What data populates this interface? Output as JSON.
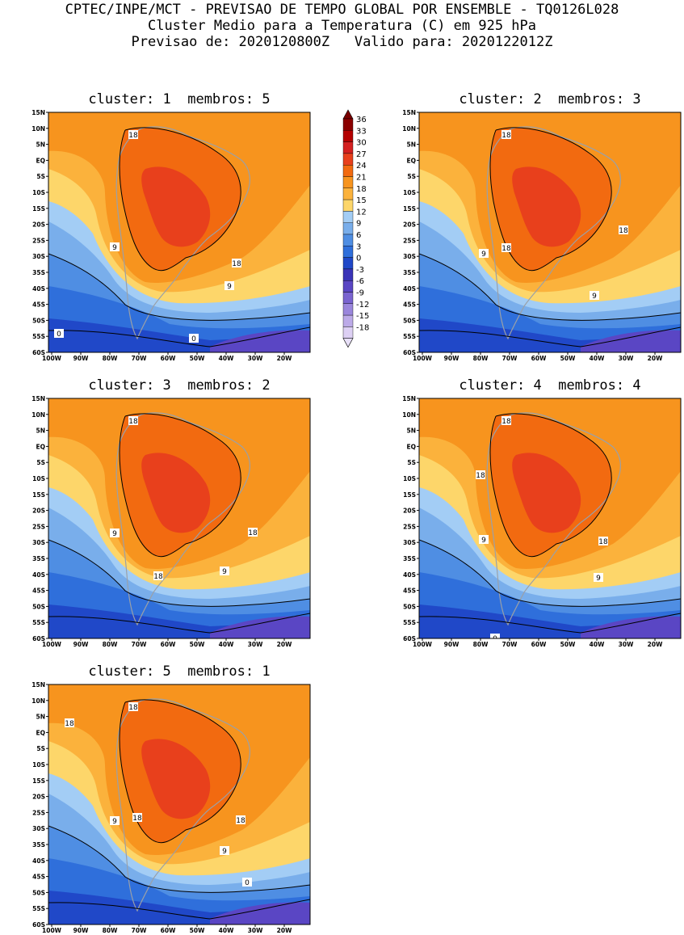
{
  "header": {
    "line1": "CPTEC/INPE/MCT - PREVISAO DE TEMPO GLOBAL POR ENSEMBLE - TQ0126L028",
    "line2": "Cluster Medio para a Temperatura (C) em 925 hPa",
    "line3": "Previsao de: 2020120800Z   Valido para: 2020122012Z"
  },
  "panels": [
    {
      "title": "cluster: 1  membros: 5",
      "contour_labels": [
        "18",
        "9",
        "18",
        "9",
        "0",
        "0"
      ]
    },
    {
      "title": "cluster: 2  membros: 3",
      "contour_labels": [
        "18",
        "18",
        "9",
        "18",
        "9"
      ]
    },
    {
      "title": "cluster: 3  membros: 2",
      "contour_labels": [
        "18",
        "9",
        "18",
        "9",
        "18"
      ]
    },
    {
      "title": "cluster: 4  membros: 4",
      "contour_labels": [
        "18",
        "18",
        "9",
        "18",
        "9",
        "0"
      ]
    },
    {
      "title": "cluster: 5  membros: 1",
      "contour_labels": [
        "18",
        "18",
        "18",
        "9",
        "18",
        "9",
        "0"
      ]
    }
  ],
  "axes": {
    "lat_labels": [
      "15N",
      "10N",
      "5N",
      "EQ",
      "5S",
      "10S",
      "15S",
      "20S",
      "25S",
      "30S",
      "35S",
      "40S",
      "45S",
      "50S",
      "55S",
      "60S"
    ],
    "lon_labels": [
      "100W",
      "90W",
      "80W",
      "70W",
      "60W",
      "50W",
      "40W",
      "30W",
      "20W"
    ]
  },
  "colorbar": {
    "labels": [
      "36",
      "33",
      "30",
      "27",
      "24",
      "21",
      "18",
      "15",
      "12",
      "9",
      "6",
      "3",
      "0",
      "-3",
      "-6",
      "-9",
      "-12",
      "-15",
      "-18"
    ],
    "colors": [
      "#8b0000",
      "#b40000",
      "#d42020",
      "#e8401c",
      "#f26a10",
      "#f7941e",
      "#fbb23c",
      "#fdd66a",
      "#a3cdf5",
      "#79aeeb",
      "#4f8ee3",
      "#2f6fdb",
      "#2048c8",
      "#3a34b8",
      "#5a46c4",
      "#7a64d0",
      "#9a86dc",
      "#bcaae8",
      "#ddd0f4"
    ],
    "arrow_top": "#7a0000",
    "arrow_bottom": "#e8e0f8"
  }
}
